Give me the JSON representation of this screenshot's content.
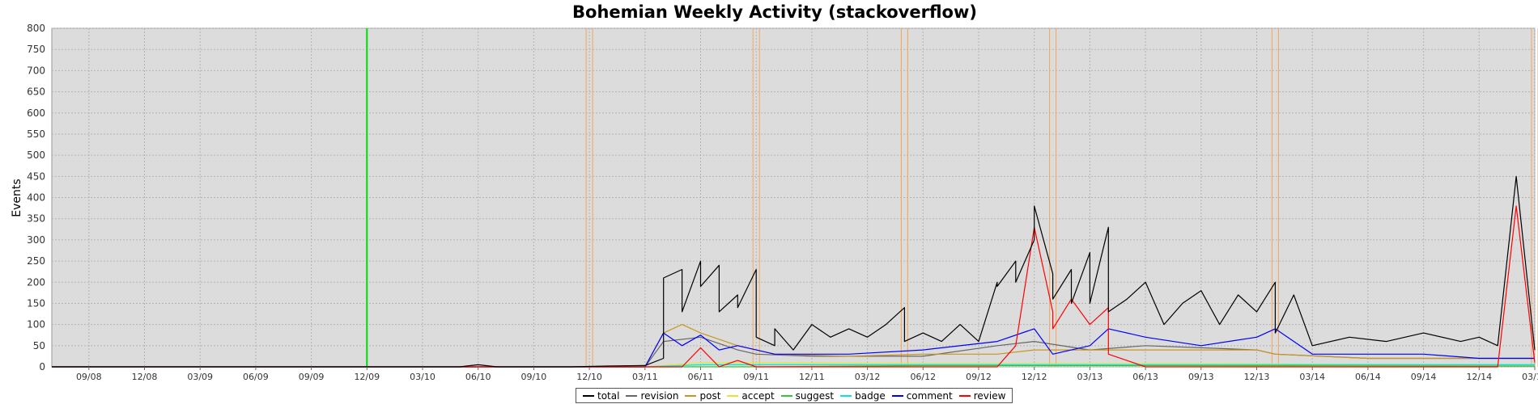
{
  "chart_data": {
    "type": "line",
    "title": "Bohemian Weekly Activity (stackoverflow)",
    "xlabel": "",
    "ylabel": "Events",
    "ylim": [
      0,
      800
    ],
    "yticks": [
      0,
      50,
      100,
      150,
      200,
      250,
      300,
      350,
      400,
      450,
      500,
      550,
      600,
      650,
      700,
      750,
      800
    ],
    "x_range": [
      "2008-07",
      "2015-03"
    ],
    "x_ticks": [
      "09/08",
      "12/08",
      "03/09",
      "06/09",
      "09/09",
      "12/09",
      "03/10",
      "06/10",
      "09/10",
      "12/10",
      "03/11",
      "06/11",
      "09/11",
      "12/11",
      "03/12",
      "06/12",
      "09/12",
      "12/12",
      "03/13",
      "06/13",
      "09/13",
      "12/13",
      "03/14",
      "06/14",
      "09/14",
      "12/14",
      "03/15"
    ],
    "grid": true,
    "background": "#dcdcdc",
    "legend_position": "bottom",
    "green_marker": "2009-12",
    "orange_markers": [
      "2010-12",
      "2011-09",
      "2012-05",
      "2013-01",
      "2014-01",
      "2015-03"
    ],
    "series": [
      {
        "name": "total",
        "color": "#000000",
        "points": [
          [
            "2008-07",
            0
          ],
          [
            "2010-05",
            0
          ],
          [
            "2010-06",
            5
          ],
          [
            "2010-07",
            0
          ],
          [
            "2010-11",
            0
          ],
          [
            "2011-01",
            2
          ],
          [
            "2011-03",
            3
          ],
          [
            "2011-04",
            20
          ],
          [
            "2011-04",
            210
          ],
          [
            "2011-05",
            230
          ],
          [
            "2011-05",
            130
          ],
          [
            "2011-06",
            250
          ],
          [
            "2011-06",
            190
          ],
          [
            "2011-07",
            240
          ],
          [
            "2011-07",
            130
          ],
          [
            "2011-08",
            170
          ],
          [
            "2011-08",
            140
          ],
          [
            "2011-09",
            230
          ],
          [
            "2011-09",
            70
          ],
          [
            "2011-10",
            50
          ],
          [
            "2011-10",
            90
          ],
          [
            "2011-11",
            40
          ],
          [
            "2011-12",
            100
          ],
          [
            "2012-01",
            70
          ],
          [
            "2012-02",
            90
          ],
          [
            "2012-03",
            70
          ],
          [
            "2012-04",
            100
          ],
          [
            "2012-05",
            140
          ],
          [
            "2012-05",
            60
          ],
          [
            "2012-06",
            80
          ],
          [
            "2012-07",
            60
          ],
          [
            "2012-08",
            100
          ],
          [
            "2012-09",
            60
          ],
          [
            "2012-10",
            200
          ],
          [
            "2012-10",
            190
          ],
          [
            "2012-11",
            250
          ],
          [
            "2012-11",
            200
          ],
          [
            "2012-12",
            300
          ],
          [
            "2012-12",
            380
          ],
          [
            "2013-01",
            220
          ],
          [
            "2013-01",
            160
          ],
          [
            "2013-02",
            230
          ],
          [
            "2013-02",
            150
          ],
          [
            "2013-03",
            270
          ],
          [
            "2013-03",
            150
          ],
          [
            "2013-04",
            330
          ],
          [
            "2013-04",
            130
          ],
          [
            "2013-05",
            160
          ],
          [
            "2013-06",
            200
          ],
          [
            "2013-07",
            100
          ],
          [
            "2013-08",
            150
          ],
          [
            "2013-09",
            180
          ],
          [
            "2013-10",
            100
          ],
          [
            "2013-11",
            170
          ],
          [
            "2013-12",
            130
          ],
          [
            "2014-01",
            200
          ],
          [
            "2014-01",
            80
          ],
          [
            "2014-02",
            170
          ],
          [
            "2014-03",
            50
          ],
          [
            "2014-05",
            70
          ],
          [
            "2014-07",
            60
          ],
          [
            "2014-09",
            80
          ],
          [
            "2014-11",
            60
          ],
          [
            "2014-12",
            70
          ],
          [
            "2015-01",
            50
          ],
          [
            "2015-02",
            450
          ],
          [
            "2015-03",
            40
          ]
        ]
      },
      {
        "name": "revision",
        "color": "#666666",
        "points": [
          [
            "2008-07",
            0
          ],
          [
            "2011-03",
            0
          ],
          [
            "2011-04",
            60
          ],
          [
            "2011-06",
            70
          ],
          [
            "2011-08",
            40
          ],
          [
            "2011-09",
            30
          ],
          [
            "2011-12",
            25
          ],
          [
            "2012-06",
            25
          ],
          [
            "2012-10",
            50
          ],
          [
            "2012-12",
            60
          ],
          [
            "2013-03",
            40
          ],
          [
            "2013-06",
            50
          ],
          [
            "2013-09",
            45
          ],
          [
            "2013-12",
            40
          ],
          [
            "2014-01",
            30
          ],
          [
            "2014-06",
            20
          ],
          [
            "2014-12",
            20
          ],
          [
            "2015-03",
            20
          ]
        ]
      },
      {
        "name": "post",
        "color": "#c8961e",
        "points": [
          [
            "2008-07",
            0
          ],
          [
            "2011-03",
            0
          ],
          [
            "2011-04",
            80
          ],
          [
            "2011-05",
            100
          ],
          [
            "2011-06",
            80
          ],
          [
            "2011-08",
            50
          ],
          [
            "2011-10",
            30
          ],
          [
            "2012-02",
            25
          ],
          [
            "2012-06",
            30
          ],
          [
            "2012-10",
            30
          ],
          [
            "2012-12",
            40
          ],
          [
            "2013-03",
            40
          ],
          [
            "2013-06",
            40
          ],
          [
            "2013-09",
            40
          ],
          [
            "2013-12",
            40
          ],
          [
            "2014-01",
            30
          ],
          [
            "2014-06",
            20
          ],
          [
            "2014-12",
            20
          ],
          [
            "2015-03",
            20
          ]
        ]
      },
      {
        "name": "accept",
        "color": "#e6e632",
        "points": [
          [
            "2008-07",
            0
          ],
          [
            "2011-03",
            0
          ],
          [
            "2011-06",
            10
          ],
          [
            "2012-06",
            8
          ],
          [
            "2013-06",
            8
          ],
          [
            "2014-06",
            6
          ],
          [
            "2015-03",
            5
          ]
        ]
      },
      {
        "name": "suggest",
        "color": "#32c832",
        "points": [
          [
            "2008-07",
            0
          ],
          [
            "2011-09",
            0
          ],
          [
            "2012-06",
            3
          ],
          [
            "2013-06",
            3
          ],
          [
            "2015-03",
            2
          ]
        ]
      },
      {
        "name": "badge",
        "color": "#00e6e6",
        "points": [
          [
            "2008-07",
            0
          ],
          [
            "2011-03",
            0
          ],
          [
            "2011-06",
            5
          ],
          [
            "2012-06",
            5
          ],
          [
            "2013-06",
            5
          ],
          [
            "2014-06",
            5
          ],
          [
            "2015-03",
            5
          ]
        ]
      },
      {
        "name": "comment",
        "color": "#0000ff",
        "points": [
          [
            "2008-07",
            0
          ],
          [
            "2011-03",
            0
          ],
          [
            "2011-04",
            80
          ],
          [
            "2011-05",
            50
          ],
          [
            "2011-06",
            75
          ],
          [
            "2011-07",
            40
          ],
          [
            "2011-08",
            50
          ],
          [
            "2011-10",
            30
          ],
          [
            "2012-02",
            30
          ],
          [
            "2012-06",
            40
          ],
          [
            "2012-10",
            60
          ],
          [
            "2012-12",
            90
          ],
          [
            "2013-01",
            30
          ],
          [
            "2013-03",
            50
          ],
          [
            "2013-04",
            90
          ],
          [
            "2013-06",
            70
          ],
          [
            "2013-09",
            50
          ],
          [
            "2013-12",
            70
          ],
          [
            "2014-01",
            90
          ],
          [
            "2014-03",
            30
          ],
          [
            "2014-06",
            30
          ],
          [
            "2014-09",
            30
          ],
          [
            "2014-12",
            20
          ],
          [
            "2015-03",
            20
          ]
        ]
      },
      {
        "name": "review",
        "color": "#ff0000",
        "points": [
          [
            "2008-07",
            0
          ],
          [
            "2011-05",
            0
          ],
          [
            "2011-06",
            45
          ],
          [
            "2011-07",
            0
          ],
          [
            "2011-08",
            15
          ],
          [
            "2011-09",
            0
          ],
          [
            "2012-10",
            0
          ],
          [
            "2012-11",
            50
          ],
          [
            "2012-12",
            330
          ],
          [
            "2013-01",
            130
          ],
          [
            "2013-01",
            90
          ],
          [
            "2013-02",
            160
          ],
          [
            "2013-03",
            100
          ],
          [
            "2013-04",
            140
          ],
          [
            "2013-04",
            30
          ],
          [
            "2013-06",
            0
          ],
          [
            "2015-01",
            0
          ],
          [
            "2015-02",
            380
          ],
          [
            "2015-03",
            10
          ]
        ]
      }
    ]
  }
}
